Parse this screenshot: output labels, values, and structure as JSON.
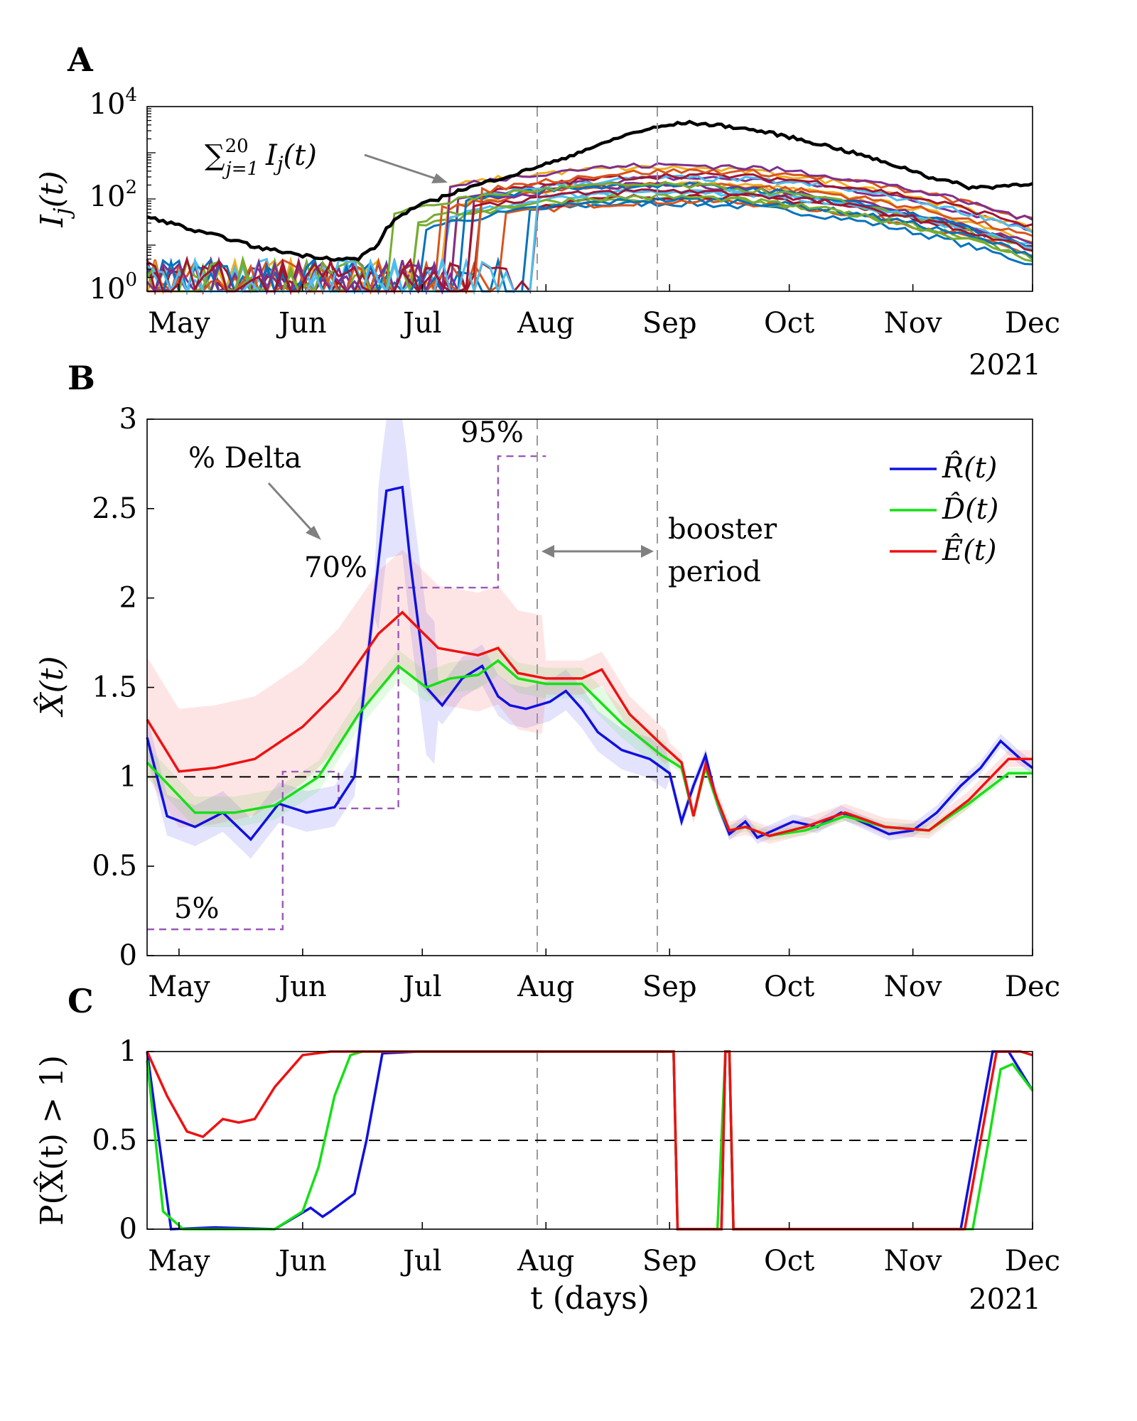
{
  "panels": {
    "a": {
      "letter": "A"
    },
    "b": {
      "letter": "B"
    },
    "c": {
      "letter": "C"
    }
  },
  "colors": {
    "R": "#1010e0",
    "D": "#16e016",
    "E": "#ee1111",
    "total": "#000000",
    "delta": "#9b59b6",
    "vline": "#9a9a9a"
  },
  "month_labels": [
    "May",
    "Jun",
    "Jul",
    "Aug",
    "Sep",
    "Oct",
    "Nov",
    "Dec"
  ],
  "year_label": "2021",
  "booster_dates": [
    "2021-07-31",
    "2021-08-30"
  ],
  "chart_data": [
    {
      "id": "A",
      "type": "line",
      "ylabel": "I_j(t)",
      "yscale": "log",
      "ylim": [
        1,
        10000
      ],
      "yticks": [
        "10^0",
        "10^2",
        "10^4"
      ],
      "xlim": [
        "2021-04-23",
        "2021-12-01"
      ],
      "annotation": "∑_{j=1}^{20} I_j(t)",
      "total": {
        "x": [
          "2021-04-23",
          "2021-05-05",
          "2021-05-20",
          "2021-06-01",
          "2021-06-10",
          "2021-06-15",
          "2021-06-20",
          "2021-06-25",
          "2021-07-05",
          "2021-07-15",
          "2021-07-25",
          "2021-08-05",
          "2021-08-15",
          "2021-08-25",
          "2021-09-05",
          "2021-09-15",
          "2021-09-25",
          "2021-10-05",
          "2021-10-15",
          "2021-10-25",
          "2021-11-05",
          "2021-11-15",
          "2021-11-20",
          "2021-12-01"
        ],
        "values": [
          40,
          20,
          9,
          6,
          5,
          5,
          10,
          40,
          100,
          200,
          350,
          700,
          1500,
          3000,
          4500,
          3800,
          2800,
          1800,
          1100,
          600,
          300,
          180,
          180,
          220
        ]
      },
      "regional_series_count": 20,
      "regional_peak_range": [
        80,
        600
      ],
      "regional_peak_date": "2021-09-01"
    },
    {
      "id": "B",
      "type": "line",
      "ylabel": "X̂(t)",
      "ylim": [
        0,
        3
      ],
      "yticks": [
        "0",
        "0.5",
        "1",
        "1.5",
        "2",
        "2.5",
        "3"
      ],
      "xlim": [
        "2021-04-23",
        "2021-12-01"
      ],
      "reference_line": 1,
      "legend": [
        "R̂(t)",
        "D̂(t)",
        "Ê(t)"
      ],
      "legend_position": "top-right",
      "annotations": {
        "delta_title": "% Delta",
        "delta_5": "5%",
        "delta_70": "70%",
        "delta_95": "95%",
        "booster": [
          "booster",
          "period"
        ]
      },
      "delta_share": {
        "x": [
          "2021-04-23",
          "2021-05-13",
          "2021-05-27",
          "2021-06-10",
          "2021-06-25",
          "2021-07-10",
          "2021-07-20",
          "2021-08-01"
        ],
        "values": [
          0.05,
          0.05,
          0.35,
          0.28,
          0.7,
          0.7,
          0.95,
          0.95
        ]
      },
      "series": [
        {
          "key": "R",
          "x": [
            "2021-04-23",
            "2021-04-28",
            "2021-05-05",
            "2021-05-12",
            "2021-05-19",
            "2021-05-26",
            "2021-06-02",
            "2021-06-09",
            "2021-06-14",
            "2021-06-18",
            "2021-06-22",
            "2021-06-26",
            "2021-06-28",
            "2021-07-02",
            "2021-07-06",
            "2021-07-11",
            "2021-07-16",
            "2021-07-20",
            "2021-07-23",
            "2021-07-27",
            "2021-08-02",
            "2021-08-06",
            "2021-08-10",
            "2021-08-14",
            "2021-08-20",
            "2021-08-27",
            "2021-09-01",
            "2021-09-04",
            "2021-09-07",
            "2021-09-10",
            "2021-09-13",
            "2021-09-16",
            "2021-09-20",
            "2021-09-23",
            "2021-09-27",
            "2021-10-02",
            "2021-10-08",
            "2021-10-14",
            "2021-10-20",
            "2021-10-26",
            "2021-11-01",
            "2021-11-07",
            "2021-11-13",
            "2021-11-18",
            "2021-11-23",
            "2021-11-28",
            "2021-12-01"
          ],
          "values": [
            1.22,
            0.78,
            0.72,
            0.8,
            0.65,
            0.85,
            0.8,
            0.83,
            1.0,
            1.8,
            2.6,
            2.62,
            2.2,
            1.5,
            1.4,
            1.55,
            1.62,
            1.45,
            1.4,
            1.38,
            1.42,
            1.48,
            1.38,
            1.25,
            1.15,
            1.1,
            1.02,
            0.75,
            0.95,
            1.12,
            0.85,
            0.68,
            0.75,
            0.66,
            0.7,
            0.75,
            0.72,
            0.8,
            0.74,
            0.68,
            0.7,
            0.8,
            0.95,
            1.05,
            1.2,
            1.1,
            1.05
          ]
        },
        {
          "key": "D",
          "x": [
            "2021-04-23",
            "2021-05-05",
            "2021-05-15",
            "2021-05-25",
            "2021-06-05",
            "2021-06-15",
            "2021-06-25",
            "2021-07-02",
            "2021-07-08",
            "2021-07-15",
            "2021-07-20",
            "2021-07-25",
            "2021-08-01",
            "2021-08-10",
            "2021-08-20",
            "2021-08-30",
            "2021-09-04",
            "2021-09-07",
            "2021-09-10",
            "2021-09-13",
            "2021-09-16",
            "2021-09-20",
            "2021-09-26",
            "2021-10-05",
            "2021-10-15",
            "2021-10-25",
            "2021-11-05",
            "2021-11-15",
            "2021-11-25",
            "2021-12-01"
          ],
          "values": [
            1.08,
            0.8,
            0.8,
            0.84,
            1.0,
            1.35,
            1.62,
            1.5,
            1.55,
            1.57,
            1.65,
            1.55,
            1.52,
            1.52,
            1.3,
            1.12,
            1.05,
            0.78,
            1.05,
            0.85,
            0.7,
            0.72,
            0.67,
            0.7,
            0.78,
            0.72,
            0.7,
            0.85,
            1.02,
            1.02
          ]
        },
        {
          "key": "E",
          "x": [
            "2021-04-23",
            "2021-05-01",
            "2021-05-10",
            "2021-05-20",
            "2021-06-01",
            "2021-06-10",
            "2021-06-20",
            "2021-06-26",
            "2021-07-05",
            "2021-07-15",
            "2021-07-20",
            "2021-07-25",
            "2021-08-01",
            "2021-08-10",
            "2021-08-15",
            "2021-08-22",
            "2021-08-30",
            "2021-09-04",
            "2021-09-07",
            "2021-09-10",
            "2021-09-13",
            "2021-09-16",
            "2021-09-20",
            "2021-09-26",
            "2021-10-05",
            "2021-10-15",
            "2021-10-25",
            "2021-11-05",
            "2021-11-15",
            "2021-11-25",
            "2021-12-01"
          ],
          "values": [
            1.32,
            1.03,
            1.05,
            1.1,
            1.28,
            1.48,
            1.8,
            1.92,
            1.72,
            1.68,
            1.72,
            1.58,
            1.55,
            1.55,
            1.6,
            1.35,
            1.18,
            1.08,
            0.78,
            1.07,
            0.87,
            0.7,
            0.72,
            0.67,
            0.72,
            0.8,
            0.72,
            0.7,
            0.87,
            1.1,
            1.1
          ]
        }
      ]
    },
    {
      "id": "C",
      "type": "line",
      "ylabel": "P(X̂(t) > 1)",
      "xlabel": "t (days)",
      "ylim": [
        0,
        1
      ],
      "yticks": [
        "0",
        "0.5",
        "1"
      ],
      "xlim": [
        "2021-04-23",
        "2021-12-01"
      ],
      "reference_line": 0.5,
      "series": [
        {
          "key": "R",
          "x": [
            "2021-04-23",
            "2021-04-26",
            "2021-04-29",
            "2021-05-10",
            "2021-05-25",
            "2021-06-03",
            "2021-06-06",
            "2021-06-08",
            "2021-06-14",
            "2021-06-17",
            "2021-06-21",
            "2021-06-30",
            "2021-09-02",
            "2021-09-03",
            "2021-09-08",
            "2021-09-14",
            "2021-09-15",
            "2021-09-16",
            "2021-09-17",
            "2021-09-30",
            "2021-11-13",
            "2021-11-17",
            "2021-11-21",
            "2021-11-25",
            "2021-12-01"
          ],
          "values": [
            1.0,
            0.5,
            0.0,
            0.01,
            0.0,
            0.12,
            0.07,
            0.1,
            0.2,
            0.5,
            0.99,
            1.0,
            1.0,
            0.0,
            0.0,
            0.0,
            1.0,
            1.0,
            0.0,
            0.0,
            0.0,
            0.5,
            1.0,
            1.0,
            0.78
          ]
        },
        {
          "key": "D",
          "x": [
            "2021-04-23",
            "2021-04-27",
            "2021-05-02",
            "2021-05-25",
            "2021-06-01",
            "2021-06-05",
            "2021-06-09",
            "2021-06-13",
            "2021-06-16",
            "2021-06-30",
            "2021-09-02",
            "2021-09-03",
            "2021-09-08",
            "2021-09-13",
            "2021-09-15",
            "2021-09-16",
            "2021-09-17",
            "2021-09-30",
            "2021-11-16",
            "2021-11-20",
            "2021-11-23",
            "2021-11-26",
            "2021-12-01"
          ],
          "values": [
            0.95,
            0.1,
            0.0,
            0.0,
            0.1,
            0.35,
            0.75,
            0.98,
            1.0,
            1.0,
            1.0,
            0.0,
            0.0,
            0.0,
            1.0,
            1.0,
            0.0,
            0.0,
            0.0,
            0.5,
            0.9,
            0.93,
            0.78
          ]
        },
        {
          "key": "E",
          "x": [
            "2021-04-23",
            "2021-04-28",
            "2021-05-03",
            "2021-05-07",
            "2021-05-12",
            "2021-05-16",
            "2021-05-20",
            "2021-05-25",
            "2021-06-01",
            "2021-06-08",
            "2021-06-15",
            "2021-06-30",
            "2021-09-02",
            "2021-09-03",
            "2021-09-08",
            "2021-09-14",
            "2021-09-15",
            "2021-09-16",
            "2021-09-17",
            "2021-09-30",
            "2021-11-14",
            "2021-11-18",
            "2021-11-22",
            "2021-11-28",
            "2021-12-01"
          ],
          "values": [
            1.0,
            0.75,
            0.55,
            0.52,
            0.62,
            0.6,
            0.62,
            0.8,
            0.98,
            1.0,
            1.0,
            1.0,
            1.0,
            0.0,
            0.0,
            0.0,
            1.0,
            1.0,
            0.0,
            0.0,
            0.0,
            0.5,
            1.0,
            1.0,
            0.98
          ]
        }
      ]
    }
  ]
}
